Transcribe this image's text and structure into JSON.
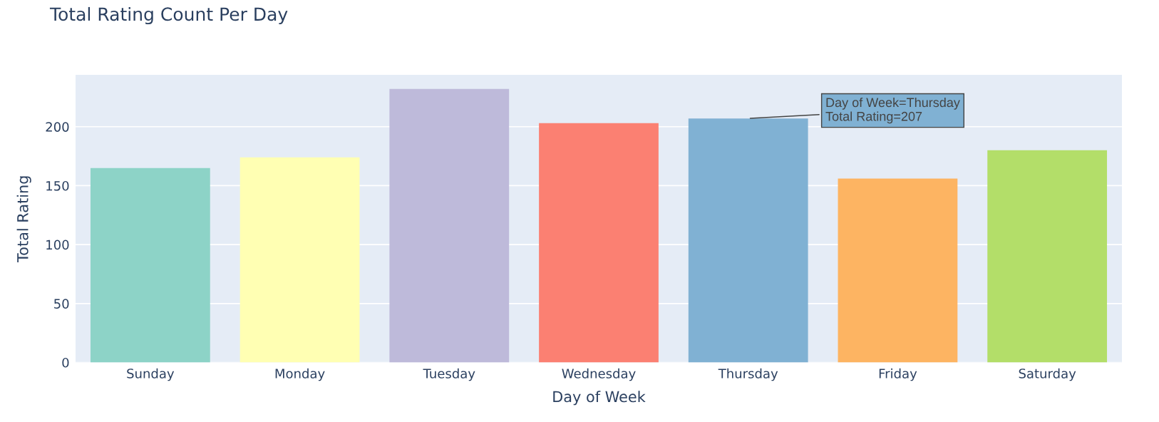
{
  "chart_data": {
    "type": "bar",
    "title": "Total Rating Count Per Day",
    "xlabel": "Day of Week",
    "ylabel": "Total Rating",
    "categories": [
      "Sunday",
      "Monday",
      "Tuesday",
      "Wednesday",
      "Thursday",
      "Friday",
      "Saturday"
    ],
    "values": [
      165,
      174,
      232,
      203,
      207,
      156,
      180
    ],
    "colors": [
      "#8dd3c7",
      "#ffffb3",
      "#bebada",
      "#fb8072",
      "#80b1d3",
      "#fdb462",
      "#b3de69"
    ],
    "ylim": [
      0,
      244
    ],
    "yticks": [
      0,
      50,
      100,
      150,
      200
    ],
    "grid": "y",
    "annotations": [
      {
        "text": "Day of Week=Thursday\nTotal Rating=207",
        "x": "Thursday",
        "y": 207
      }
    ]
  }
}
